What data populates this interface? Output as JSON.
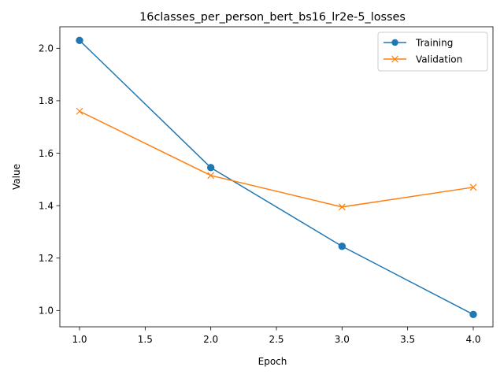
{
  "chart_data": {
    "type": "line",
    "title": "16classes_per_person_bert_bs16_lr2e-5_losses",
    "xlabel": "Epoch",
    "ylabel": "Value",
    "x": [
      1,
      2,
      3,
      4
    ],
    "xlim": [
      0.85,
      4.15
    ],
    "ylim": [
      0.938,
      2.082
    ],
    "xticks": [
      1.0,
      1.5,
      2.0,
      2.5,
      3.0,
      3.5,
      4.0
    ],
    "xtick_labels": [
      "1.0",
      "1.5",
      "2.0",
      "2.5",
      "3.0",
      "3.5",
      "4.0"
    ],
    "yticks": [
      1.0,
      1.2,
      1.4,
      1.6,
      1.8,
      2.0
    ],
    "ytick_labels": [
      "1.0",
      "1.2",
      "1.4",
      "1.6",
      "1.8",
      "2.0"
    ],
    "grid": false,
    "legend_position": "top-right",
    "series": [
      {
        "name": "Training",
        "values": [
          2.03,
          1.545,
          1.245,
          0.985
        ],
        "color": "#1f77b4",
        "marker": "circle"
      },
      {
        "name": "Validation",
        "values": [
          1.76,
          1.515,
          1.395,
          1.47
        ],
        "color": "#ff7f0e",
        "marker": "x"
      }
    ]
  }
}
